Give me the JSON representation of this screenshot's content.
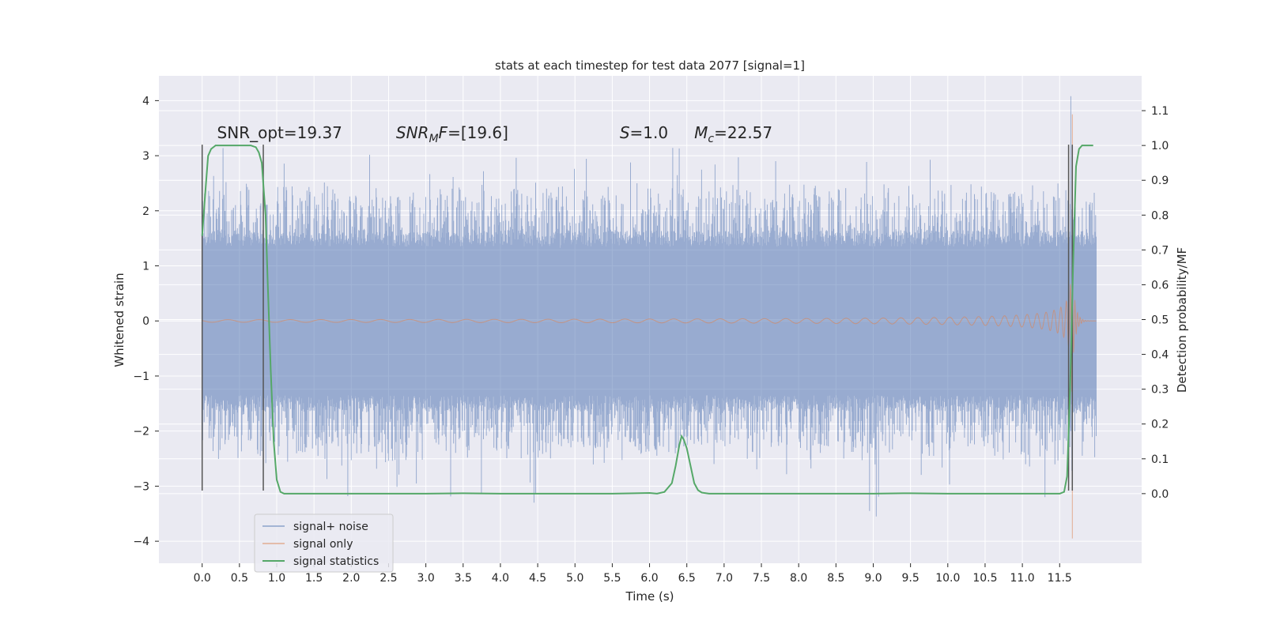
{
  "chart_data": {
    "type": "line",
    "title": "stats at each timestep for test data 2077 [signal=1]",
    "xlabel": "Time (s)",
    "ylabel": "Whitened strain",
    "y2label": "Detection probability/MF",
    "xlim": [
      -0.58,
      12.6
    ],
    "ylim": [
      -4.4,
      4.45
    ],
    "y2lim": [
      -0.2,
      1.2
    ],
    "x_ticks": [
      0.0,
      0.5,
      1.0,
      1.5,
      2.0,
      2.5,
      3.0,
      3.5,
      4.0,
      4.5,
      5.0,
      5.5,
      6.0,
      6.5,
      7.0,
      7.5,
      8.0,
      8.5,
      9.0,
      9.5,
      10.0,
      10.5,
      11.0,
      11.5
    ],
    "x_tick_labels": [
      "0.0",
      "0.5",
      "1.0",
      "1.5",
      "2.0",
      "2.5",
      "3.0",
      "3.5",
      "4.0",
      "4.5",
      "5.0",
      "5.5",
      "6.0",
      "6.5",
      "7.0",
      "7.5",
      "8.0",
      "8.5",
      "9.0",
      "9.5",
      "10.0",
      "10.5",
      "11.0",
      "11.5"
    ],
    "y_ticks": [
      -4,
      -3,
      -2,
      -1,
      0,
      1,
      2,
      3,
      4
    ],
    "y_tick_labels": [
      "−4",
      "−3",
      "−2",
      "−1",
      "0",
      "1",
      "2",
      "3",
      "4"
    ],
    "y2_ticks": [
      0.0,
      0.1,
      0.2,
      0.3,
      0.4,
      0.5,
      0.6,
      0.7,
      0.8,
      0.9,
      1.0,
      1.1
    ],
    "y2_tick_labels": [
      "0.0",
      "0.1",
      "0.2",
      "0.3",
      "0.4",
      "0.5",
      "0.6",
      "0.7",
      "0.8",
      "0.9",
      "1.0",
      "1.1"
    ],
    "grid": true,
    "legend_position": "bottom-left",
    "legend": [
      "signal+ noise",
      "signal only",
      "signal statistics"
    ],
    "annotations": [
      {
        "text": "SNR_opt=19.37",
        "x": 0.2,
        "y": 3.32
      },
      {
        "text": "SNR_MF=[19.6]",
        "x": 2.6,
        "y": 3.32
      },
      {
        "text": "S=1.0",
        "x": 5.6,
        "y": 3.32
      },
      {
        "text": "M_c=22.57",
        "x": 6.6,
        "y": 3.32
      }
    ],
    "series": [
      {
        "name": "signal+ noise",
        "color": "#4c72b0",
        "axis": "left",
        "kind": "dense-noise",
        "x_range": [
          0.0,
          11.99
        ],
        "band": 1.35,
        "typical_peak": 2.2,
        "max": 4.08,
        "min": -3.55
      },
      {
        "name": "signal only",
        "color": "#dd8452",
        "axis": "left",
        "kind": "chirp",
        "x_range": [
          0.0,
          11.99
        ],
        "merger_time": 11.67,
        "peak_positive": 3.75,
        "peak_negative": -3.95
      },
      {
        "name": "signal statistics",
        "color": "#55a868",
        "axis": "right",
        "x": [
          0.0,
          0.04,
          0.08,
          0.12,
          0.18,
          0.25,
          0.35,
          0.45,
          0.55,
          0.65,
          0.72,
          0.76,
          0.8,
          0.85,
          0.88,
          0.92,
          0.96,
          1.0,
          1.05,
          1.1,
          1.2,
          1.5,
          2.0,
          2.5,
          3.0,
          3.5,
          4.0,
          4.5,
          5.0,
          5.5,
          5.8,
          6.0,
          6.1,
          6.2,
          6.3,
          6.35,
          6.4,
          6.43,
          6.46,
          6.5,
          6.55,
          6.6,
          6.65,
          6.7,
          6.8,
          7.0,
          7.5,
          8.0,
          8.5,
          9.0,
          9.4,
          9.5,
          10.0,
          10.5,
          11.0,
          11.4,
          11.5,
          11.56,
          11.6,
          11.64,
          11.68,
          11.72,
          11.76,
          11.8,
          11.85,
          11.9,
          11.95
        ],
        "y": [
          0.74,
          0.86,
          0.97,
          0.99,
          1.0,
          1.0,
          1.0,
          1.0,
          1.0,
          1.0,
          0.995,
          0.98,
          0.95,
          0.8,
          0.6,
          0.35,
          0.15,
          0.04,
          0.005,
          0.0,
          0.0,
          0.0,
          0.0,
          0.0,
          0.0,
          0.001,
          0.0,
          0.0,
          0.0,
          0.0,
          0.001,
          0.002,
          0.0,
          0.005,
          0.03,
          0.08,
          0.14,
          0.165,
          0.155,
          0.13,
          0.08,
          0.03,
          0.01,
          0.003,
          0.0,
          0.0,
          0.0,
          0.0,
          0.0,
          0.0,
          0.001,
          0.001,
          0.0,
          0.0,
          0.0,
          0.0,
          0.0,
          0.005,
          0.05,
          0.3,
          0.65,
          0.94,
          0.99,
          1.0,
          1.0,
          1.0,
          1.0
        ]
      }
    ],
    "vertical_markers": {
      "color": "#555555",
      "x": [
        0.0,
        0.82,
        11.62,
        11.67
      ],
      "y_from": -3.08,
      "y_to": 3.2
    }
  }
}
